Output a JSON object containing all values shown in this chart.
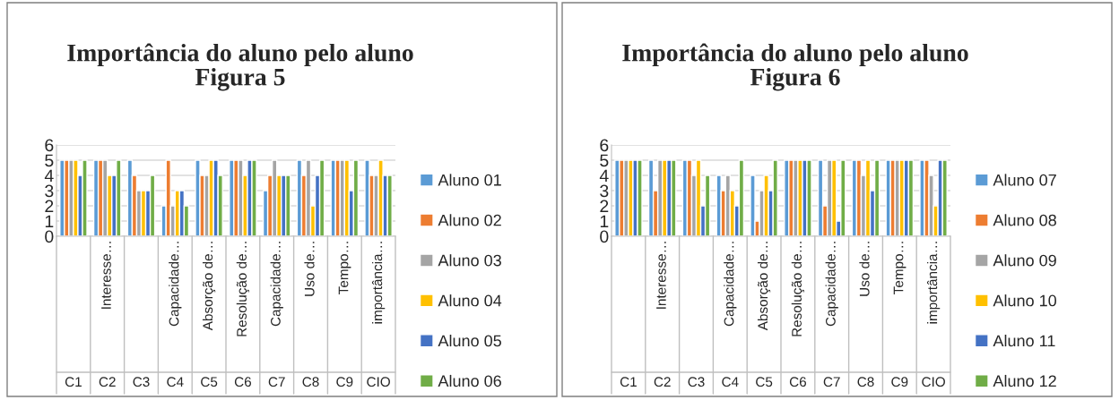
{
  "chart_data": [
    {
      "type": "bar",
      "title": "Importância do aluno pelo aluno\nFigura 5",
      "categories": [
        null,
        "Interesse…",
        null,
        "Capacidade…",
        "Absorção de…",
        "Resolução de…",
        "Capacidade…",
        "Uso de…",
        "Tempo…",
        "importância…"
      ],
      "series": [
        {
          "name": "Aluno 01",
          "color": "#5b9bd5",
          "values": [
            5,
            5,
            5,
            2,
            5,
            5,
            3,
            5,
            5,
            5
          ]
        },
        {
          "name": "Aluno 02",
          "color": "#ed7d31",
          "values": [
            5,
            5,
            4,
            5,
            4,
            5,
            4,
            4,
            5,
            4
          ]
        },
        {
          "name": "Aluno 03",
          "color": "#a5a5a5",
          "values": [
            5,
            5,
            3,
            2,
            4,
            5,
            5,
            5,
            5,
            4
          ]
        },
        {
          "name": "Aluno 04",
          "color": "#ffc000",
          "values": [
            5,
            4,
            3,
            3,
            5,
            4,
            4,
            2,
            5,
            5
          ]
        },
        {
          "name": "Aluno 05",
          "color": "#4472c4",
          "values": [
            4,
            4,
            3,
            3,
            5,
            5,
            4,
            4,
            3,
            4
          ]
        },
        {
          "name": "Aluno 06",
          "color": "#70ad47",
          "values": [
            5,
            5,
            4,
            2,
            4,
            5,
            4,
            5,
            5,
            4
          ]
        }
      ],
      "annotations": [
        "C1",
        "C2",
        "C3",
        "C4",
        "C5",
        "C6",
        "C7",
        "C8",
        "C9",
        "CIO"
      ],
      "ylim": [
        0,
        6
      ],
      "yticks": [
        0,
        1,
        2,
        3,
        4,
        5,
        6
      ],
      "grid": "y",
      "legend": "right"
    },
    {
      "type": "bar",
      "title": "Importância do aluno pelo aluno\nFigura 6",
      "categories": [
        null,
        "Interesse…",
        null,
        "Capacidade…",
        "Absorção de…",
        "Resolução de…",
        "Capacidade…",
        "Uso de…",
        "Tempo…",
        "importância…"
      ],
      "series": [
        {
          "name": "Aluno 07",
          "color": "#5b9bd5",
          "values": [
            5,
            5,
            5,
            4,
            4,
            5,
            5,
            5,
            5,
            5
          ]
        },
        {
          "name": "Aluno 08",
          "color": "#ed7d31",
          "values": [
            5,
            3,
            5,
            3,
            1,
            5,
            2,
            5,
            5,
            5
          ]
        },
        {
          "name": "Aluno 09",
          "color": "#a5a5a5",
          "values": [
            5,
            5,
            4,
            4,
            3,
            5,
            5,
            4,
            5,
            4
          ]
        },
        {
          "name": "Aluno 10",
          "color": "#ffc000",
          "values": [
            5,
            5,
            5,
            3,
            4,
            5,
            5,
            5,
            5,
            2
          ]
        },
        {
          "name": "Aluno 11",
          "color": "#4472c4",
          "values": [
            5,
            5,
            2,
            2,
            3,
            5,
            1,
            3,
            5,
            5
          ]
        },
        {
          "name": "Aluno 12",
          "color": "#70ad47",
          "values": [
            5,
            5,
            4,
            5,
            5,
            5,
            5,
            5,
            5,
            5
          ]
        }
      ],
      "annotations": [
        "C1",
        "C2",
        "C3",
        "C4",
        "C5",
        "C6",
        "C7",
        "C8",
        "C9",
        "CIO"
      ],
      "ylim": [
        0,
        6
      ],
      "yticks": [
        0,
        1,
        2,
        3,
        4,
        5,
        6
      ],
      "grid": "y",
      "legend": "right"
    }
  ]
}
